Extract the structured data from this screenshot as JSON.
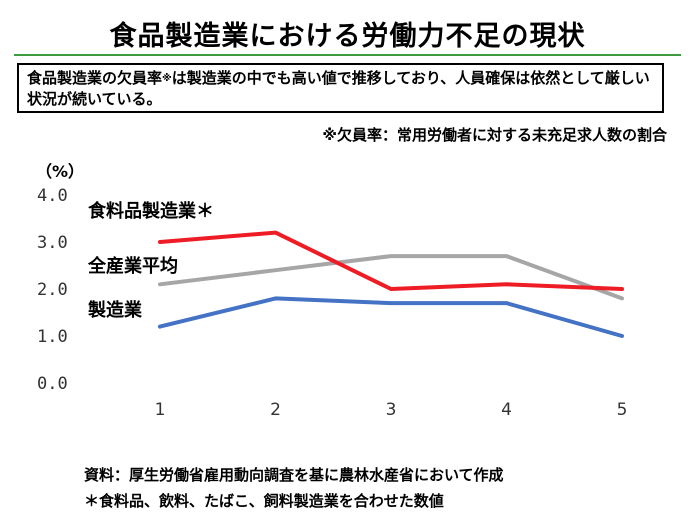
{
  "title": "食品製造業における労働力不足の現状",
  "callout": {
    "before_mark": "食品製造業の欠員率",
    "mark": "※",
    "after_mark": "は製造業の中でも高い値で推移しており、人員確保は依然として厳しい状況が続いている。"
  },
  "definition": "※欠員率：常用労働者に対する未充足求人数の割合",
  "source_note": "資料：厚生労働省雇用動向調査を基に農林水産省において作成",
  "footnote": "＊食料品、飲料、たばこ、飼料製造業を合わせた数値",
  "chart_data": {
    "type": "line",
    "unit_label": "（%）",
    "x": [
      "1",
      "2",
      "3",
      "4",
      "5"
    ],
    "ylim": [
      0,
      4
    ],
    "yticks": [
      "0.0",
      "1.0",
      "2.0",
      "3.0",
      "4.0"
    ],
    "grid": false,
    "series": [
      {
        "name": "食料品製造業＊",
        "color": "#ee1c25",
        "values": [
          3.0,
          3.2,
          2.0,
          2.1,
          2.0
        ]
      },
      {
        "name": "全産業平均",
        "color": "#a6a6a6",
        "values": [
          2.1,
          2.4,
          2.7,
          2.7,
          1.8
        ]
      },
      {
        "name": "製造業",
        "color": "#4472c4",
        "values": [
          1.2,
          1.8,
          1.7,
          1.7,
          1.0
        ]
      }
    ]
  }
}
